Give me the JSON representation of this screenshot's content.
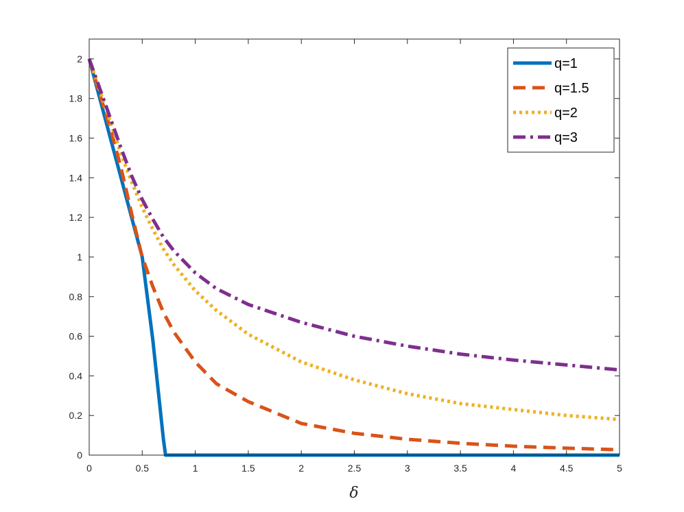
{
  "chart_data": {
    "type": "line",
    "xlabel": "δ",
    "ylabel": "",
    "title": "",
    "xlim": [
      0,
      5
    ],
    "ylim": [
      0,
      2.1
    ],
    "xticks": [
      "0",
      "0.5",
      "1",
      "1.5",
      "2",
      "2.5",
      "3",
      "3.5",
      "4",
      "4.5",
      "5"
    ],
    "yticks": [
      "0",
      "0.2",
      "0.4",
      "0.6",
      "0.8",
      "1",
      "1.2",
      "1.4",
      "1.6",
      "1.8",
      "2"
    ],
    "grid": false,
    "legend_position": "top-right",
    "series": [
      {
        "name": "q=1",
        "color": "#0072BD",
        "style": "solid",
        "x": [
          0,
          0.1,
          0.2,
          0.3,
          0.4,
          0.5,
          0.6,
          0.7,
          0.72,
          1,
          2,
          3,
          4,
          5
        ],
        "y": [
          2,
          1.8,
          1.6,
          1.4,
          1.2,
          1,
          0.58,
          0.08,
          0,
          0,
          0,
          0,
          0,
          0
        ]
      },
      {
        "name": "q=1.5",
        "color": "#D95319",
        "style": "dashed",
        "x": [
          0,
          0.1,
          0.2,
          0.3,
          0.4,
          0.5,
          0.6,
          0.7,
          0.8,
          1.0,
          1.2,
          1.5,
          2,
          2.5,
          3,
          3.5,
          4,
          4.5,
          5
        ],
        "y": [
          2,
          1.82,
          1.65,
          1.45,
          1.22,
          1.0,
          0.85,
          0.72,
          0.62,
          0.47,
          0.36,
          0.27,
          0.16,
          0.11,
          0.08,
          0.06,
          0.045,
          0.035,
          0.027
        ]
      },
      {
        "name": "q=2",
        "color": "#EDB120",
        "style": "dotted",
        "x": [
          0,
          0.1,
          0.2,
          0.3,
          0.4,
          0.5,
          0.6,
          0.7,
          0.8,
          1.0,
          1.2,
          1.5,
          2,
          2.5,
          3,
          3.5,
          4,
          4.5,
          5
        ],
        "y": [
          2,
          1.84,
          1.68,
          1.52,
          1.38,
          1.25,
          1.14,
          1.04,
          0.96,
          0.83,
          0.73,
          0.61,
          0.47,
          0.38,
          0.31,
          0.26,
          0.23,
          0.2,
          0.18
        ]
      },
      {
        "name": "q=3",
        "color": "#7E2F8E",
        "style": "dashdot",
        "x": [
          0,
          0.1,
          0.2,
          0.3,
          0.4,
          0.5,
          0.6,
          0.7,
          0.8,
          1.0,
          1.2,
          1.5,
          2,
          2.5,
          3,
          3.5,
          4,
          4.5,
          5
        ],
        "y": [
          2,
          1.85,
          1.7,
          1.55,
          1.41,
          1.29,
          1.19,
          1.1,
          1.03,
          0.92,
          0.84,
          0.76,
          0.67,
          0.6,
          0.55,
          0.51,
          0.48,
          0.455,
          0.43
        ]
      }
    ]
  }
}
